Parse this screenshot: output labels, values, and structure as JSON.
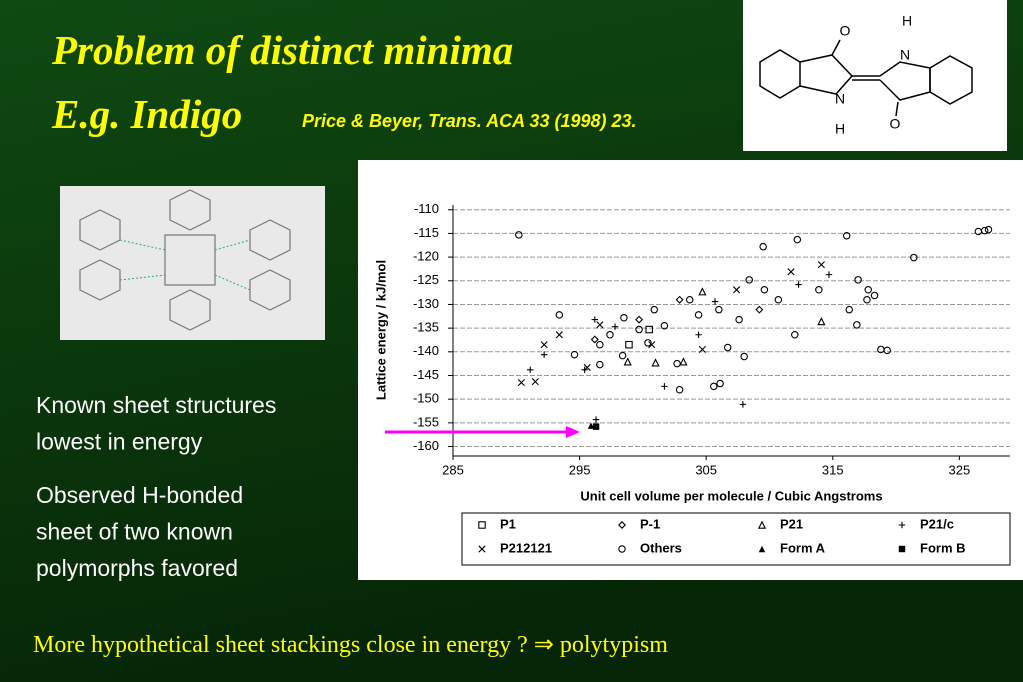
{
  "title": "Problem of distinct minima",
  "subtitle": "E.g. Indigo",
  "citation": "Price & Beyer, Trans. ACA 33 (1998) 23.",
  "molecule": {
    "labels": [
      "O",
      "H",
      "N",
      "N",
      "H",
      "O"
    ]
  },
  "bullets": [
    [
      "Known sheet structures",
      "lowest in energy"
    ],
    [
      "Observed H-bonded",
      "sheet of two known",
      "polymorphs favored"
    ]
  ],
  "footer": "More hypothetical sheet stackings close in energy ? ⇒ polytypism",
  "chart_data": {
    "type": "scatter",
    "xlabel": "Unit cell volume per molecule / Cubic Angstroms",
    "ylabel": "Lattice energy / kJ/mol",
    "xlim": [
      285,
      329
    ],
    "ylim": [
      -162,
      -109
    ],
    "xticks": [
      285,
      295,
      305,
      315,
      325
    ],
    "yticks": [
      -110,
      -115,
      -120,
      -125,
      -130,
      -135,
      -140,
      -145,
      -150,
      -155,
      -160
    ],
    "grid": true,
    "series": [
      {
        "name": "P1",
        "marker": "square-open",
        "color": "#000000",
        "x": [
          300.5,
          298.9
        ],
        "values": [
          -135.3,
          -138.5
        ]
      },
      {
        "name": "P-1",
        "marker": "diamond-open",
        "color": "#000000",
        "x": [
          299.7,
          302.9,
          296.2,
          309.2
        ],
        "values": [
          -133.2,
          -129,
          -137.4,
          -131.1
        ]
      },
      {
        "name": "P21",
        "marker": "triangle-open",
        "color": "#000000",
        "x": [
          304.7,
          301,
          303.2,
          314.1,
          298.8
        ],
        "values": [
          -127.3,
          -142.3,
          -142.1,
          -133.6,
          -142.1
        ]
      },
      {
        "name": "P21/c",
        "marker": "plus",
        "color": "#000000",
        "x": [
          291.1,
          292.2,
          295.4,
          296.2,
          297.8,
          301.7,
          304.4,
          305.7,
          307.9,
          312.3,
          314.7,
          296.3
        ],
        "values": [
          -143.8,
          -140.6,
          -143.8,
          -133.2,
          -134.7,
          -147.3,
          -136.4,
          -129.4,
          -151.1,
          -125.8,
          -123.7,
          -154.3
        ]
      },
      {
        "name": "P212121",
        "marker": "cross",
        "color": "#000000",
        "x": [
          290.4,
          291.5,
          292.2,
          293.4,
          295.6,
          296.6,
          300.7,
          304.7,
          307.4,
          311.7,
          314.1
        ],
        "values": [
          -146.5,
          -146.3,
          -138.5,
          -136.4,
          -143.3,
          -134.3,
          -138.5,
          -139.5,
          -126.9,
          -123.1,
          -121.6
        ]
      },
      {
        "name": "Others",
        "marker": "circle-open",
        "color": "#000000",
        "x": [
          290.2,
          309.5,
          312.2,
          316.1,
          321.4,
          326.5,
          327,
          327.3,
          308.4,
          317,
          317.8,
          318.8,
          319.3,
          306.7,
          308,
          305.6,
          306.1,
          302.9,
          302.7,
          293.4,
          294.6,
          296.6,
          297.4,
          298.5,
          299.7,
          300.9,
          301.7,
          303.7,
          304.4,
          306,
          307.6,
          309.6,
          310.7,
          312,
          313.9,
          316.3,
          316.9,
          317.7,
          318.3,
          296.6,
          300.4,
          298.4
        ],
        "values": [
          -115.3,
          -117.8,
          -116.3,
          -115.5,
          -120.1,
          -114.6,
          -114.4,
          -114.2,
          -124.8,
          -124.8,
          -126.9,
          -139.5,
          -139.7,
          -139.1,
          -141,
          -147.3,
          -146.7,
          -148,
          -142.5,
          -132.2,
          -140.6,
          -138.5,
          -136.4,
          -132.8,
          -135.3,
          -131.1,
          -134.5,
          -129,
          -132.2,
          -131.1,
          -133.2,
          -126.9,
          -129,
          -136.4,
          -126.9,
          -131.1,
          -134.3,
          -129,
          -128.1,
          -142.7,
          -138.1,
          -140.8
        ]
      },
      {
        "name": "Form A",
        "marker": "triangle-filled",
        "color": "#000000",
        "x": [
          295.9
        ],
        "values": [
          -155.6
        ]
      },
      {
        "name": "Form B",
        "marker": "square-filled",
        "color": "#000000",
        "x": [
          296.3
        ],
        "values": [
          -155.8
        ]
      }
    ]
  }
}
